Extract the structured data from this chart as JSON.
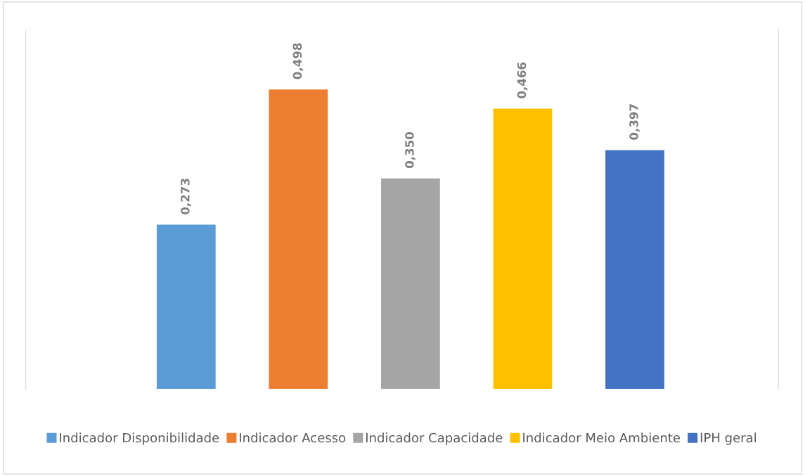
{
  "chart_data": {
    "type": "bar",
    "categories": [
      null,
      null,
      null,
      null,
      null
    ],
    "stacked": true,
    "series": [
      {
        "name": "Indicador Disponibilidade",
        "color": "#5b9bd5",
        "values": [
          0.273,
          null,
          null,
          null,
          null
        ],
        "value_labels": [
          "0,273",
          null,
          null,
          null,
          null
        ]
      },
      {
        "name": "Indicador Acesso",
        "color": "#ed7d31",
        "values": [
          null,
          0.498,
          null,
          null,
          null
        ],
        "value_labels": [
          null,
          "0,498",
          null,
          null,
          null
        ]
      },
      {
        "name": "Indicador Capacidade",
        "color": "#a5a5a5",
        "values": [
          null,
          null,
          0.35,
          null,
          null
        ],
        "value_labels": [
          null,
          null,
          "0,350",
          null,
          null
        ]
      },
      {
        "name": "Indicador Meio Ambiente",
        "color": "#ffc000",
        "values": [
          null,
          null,
          null,
          0.466,
          null
        ],
        "value_labels": [
          null,
          null,
          null,
          "0,466",
          null
        ]
      },
      {
        "name": "IPH geral",
        "color": "#4472c4",
        "values": [
          null,
          null,
          null,
          null,
          0.397
        ],
        "value_labels": [
          null,
          null,
          null,
          null,
          "0,397"
        ]
      }
    ],
    "legend": "bottom"
  }
}
